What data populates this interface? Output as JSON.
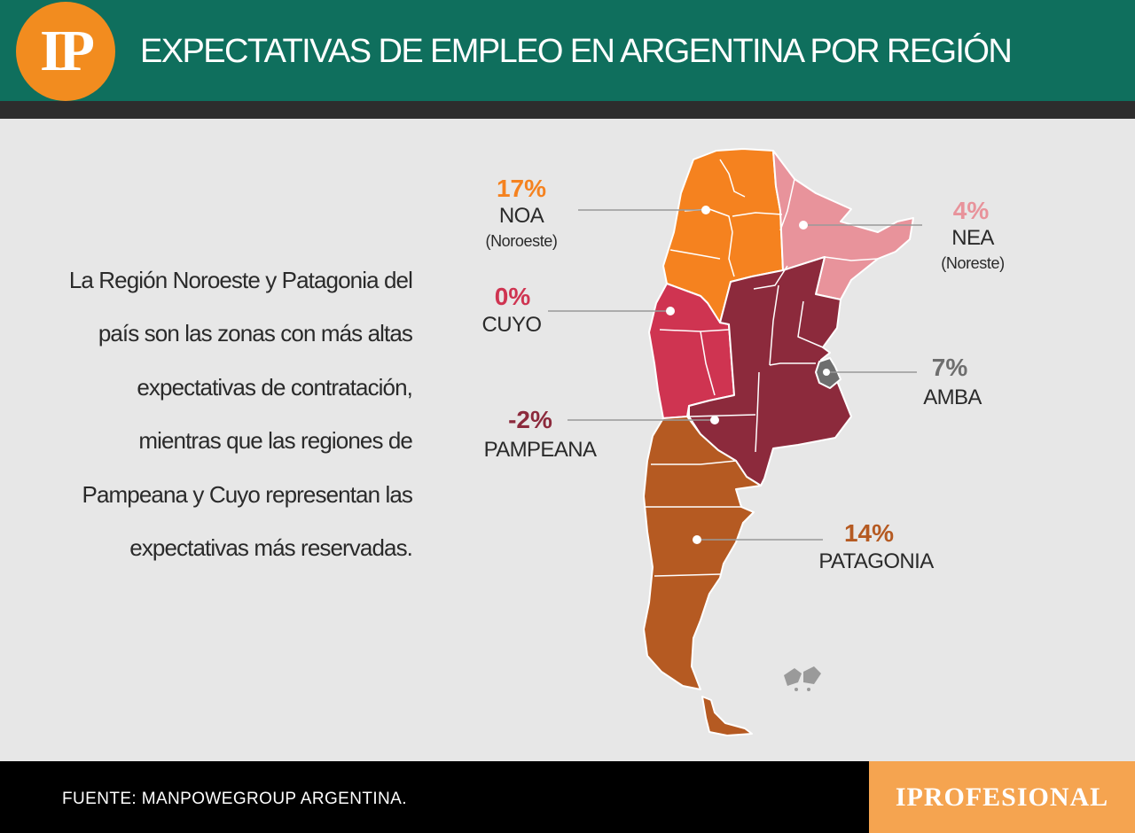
{
  "header": {
    "logo": "IP",
    "title": "EXPECTATIVAS DE EMPLEO EN ARGENTINA POR REGIÓN"
  },
  "description": "La Región Noroeste y Patagonia del país son las zonas con más altas expectativas de contratación, mientras que las regiones de Pampeana y Cuyo representan las expectativas más reservadas.",
  "regions": {
    "noa": {
      "pct": "17%",
      "name": "NOA",
      "sub": "(Noroeste)",
      "color": "#f5821f"
    },
    "nea": {
      "pct": "4%",
      "name": "NEA",
      "sub": "(Noreste)",
      "color": "#e8939b"
    },
    "cuyo": {
      "pct": "0%",
      "name": "CUYO",
      "color": "#cf3451"
    },
    "amba": {
      "pct": "7%",
      "name": "AMBA",
      "color": "#6e6e6e"
    },
    "pampeana": {
      "pct": "-2%",
      "name": "PAMPEANA",
      "color": "#8c2a3c"
    },
    "patagonia": {
      "pct": "14%",
      "name": "PATAGONIA",
      "color": "#b55a22"
    }
  },
  "footer": {
    "source": "FUENTE: MANPOWEGROUP ARGENTINA.",
    "brand": "IPROFESIONAL"
  }
}
